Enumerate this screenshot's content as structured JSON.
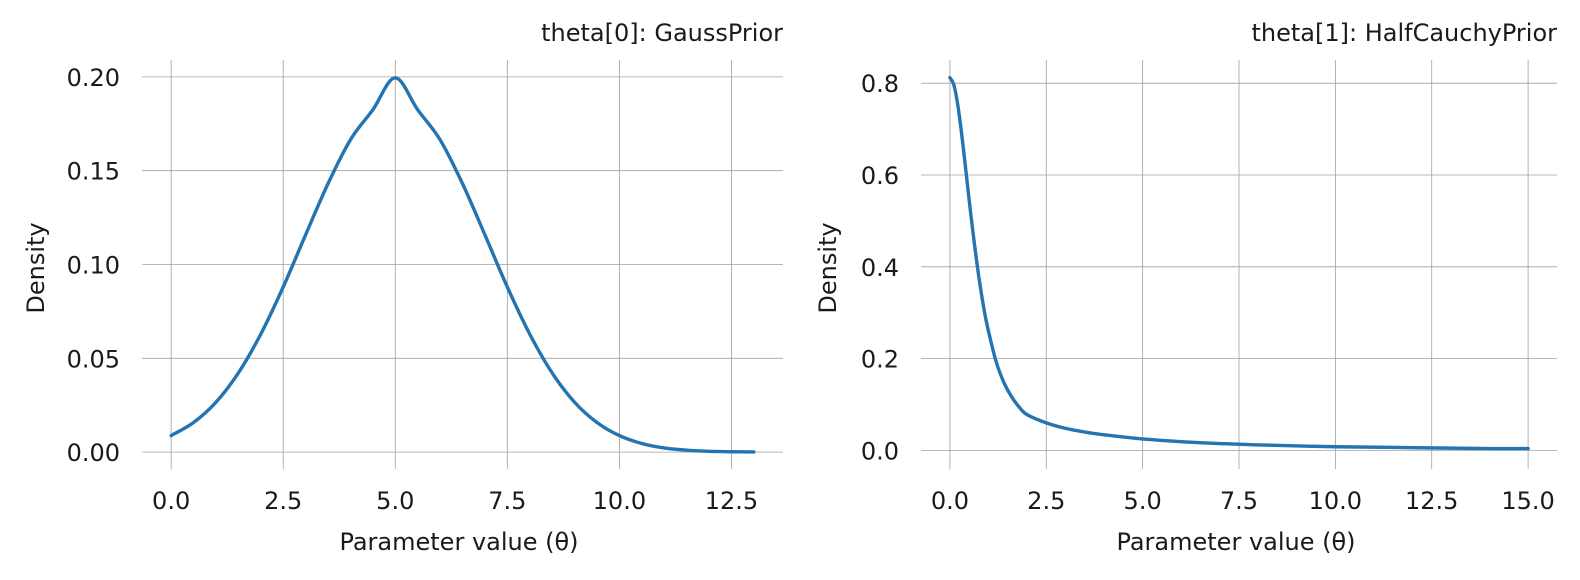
{
  "chart_data": [
    {
      "type": "line",
      "title": "theta[0]: GaussPrior",
      "xlabel": "Parameter value (θ)",
      "ylabel": "Density",
      "xlim": [
        -0.65,
        13.65
      ],
      "ylim": [
        -0.009,
        0.209
      ],
      "xticks": [
        0,
        2.5,
        5,
        7.5,
        10,
        12.5
      ],
      "xtick_labels": [
        "0.0",
        "2.5",
        "5.0",
        "7.5",
        "10.0",
        "12.5"
      ],
      "yticks": [
        0,
        0.05,
        0.1,
        0.15,
        0.2
      ],
      "ytick_labels": [
        "0.00",
        "0.05",
        "0.10",
        "0.15",
        "0.20"
      ],
      "grid": true,
      "color": "#2374b1",
      "series": [
        {
          "x": [
            0,
            0.5,
            1,
            1.5,
            2,
            2.5,
            3,
            3.5,
            4,
            4.5,
            5,
            5.5,
            6,
            6.5,
            7,
            7.5,
            8,
            8.5,
            9,
            9.5,
            10,
            10.5,
            11,
            11.5,
            12,
            12.5,
            13
          ],
          "y": [
            0.0088,
            0.0158,
            0.0266,
            0.0422,
            0.0629,
            0.088,
            0.1158,
            0.1431,
            0.1665,
            0.1825,
            0.1995,
            0.1825,
            0.1665,
            0.1431,
            0.1158,
            0.088,
            0.0629,
            0.0422,
            0.0266,
            0.0158,
            0.0088,
            0.0046,
            0.0022,
            0.001,
            0.0004,
            0.0002,
            0.0001
          ]
        }
      ]
    },
    {
      "type": "line",
      "title": "theta[1]: HalfCauchyPrior",
      "xlabel": "Parameter value (θ)",
      "ylabel": "Density",
      "xlim": [
        -0.75,
        15.75
      ],
      "ylim": [
        -0.0405,
        0.8505
      ],
      "xticks": [
        0,
        2.5,
        5,
        7.5,
        10,
        12.5,
        15
      ],
      "xtick_labels": [
        "0.0",
        "2.5",
        "5.0",
        "7.5",
        "10.0",
        "12.5",
        "15.0"
      ],
      "yticks": [
        0,
        0.2,
        0.4,
        0.6,
        0.8
      ],
      "ytick_labels": [
        "0.0",
        "0.2",
        "0.4",
        "0.6",
        "0.8"
      ],
      "grid": true,
      "color": "#2374b1",
      "series": [
        {
          "x": [
            0,
            0.1,
            0.2,
            0.3,
            0.4,
            0.5,
            0.6,
            0.75,
            0.9,
            1,
            1.2,
            1.4,
            1.6,
            1.8,
            2,
            2.5,
            3,
            3.5,
            4,
            5,
            6,
            7,
            8,
            10,
            12,
            14,
            15
          ],
          "y": [
            0.812,
            0.797,
            0.755,
            0.693,
            0.62,
            0.545,
            0.474,
            0.378,
            0.3,
            0.26,
            0.193,
            0.148,
            0.117,
            0.094,
            0.078,
            0.06,
            0.048,
            0.04,
            0.034,
            0.025,
            0.019,
            0.015,
            0.012,
            0.008,
            0.006,
            0.004,
            0.004
          ]
        }
      ]
    }
  ]
}
